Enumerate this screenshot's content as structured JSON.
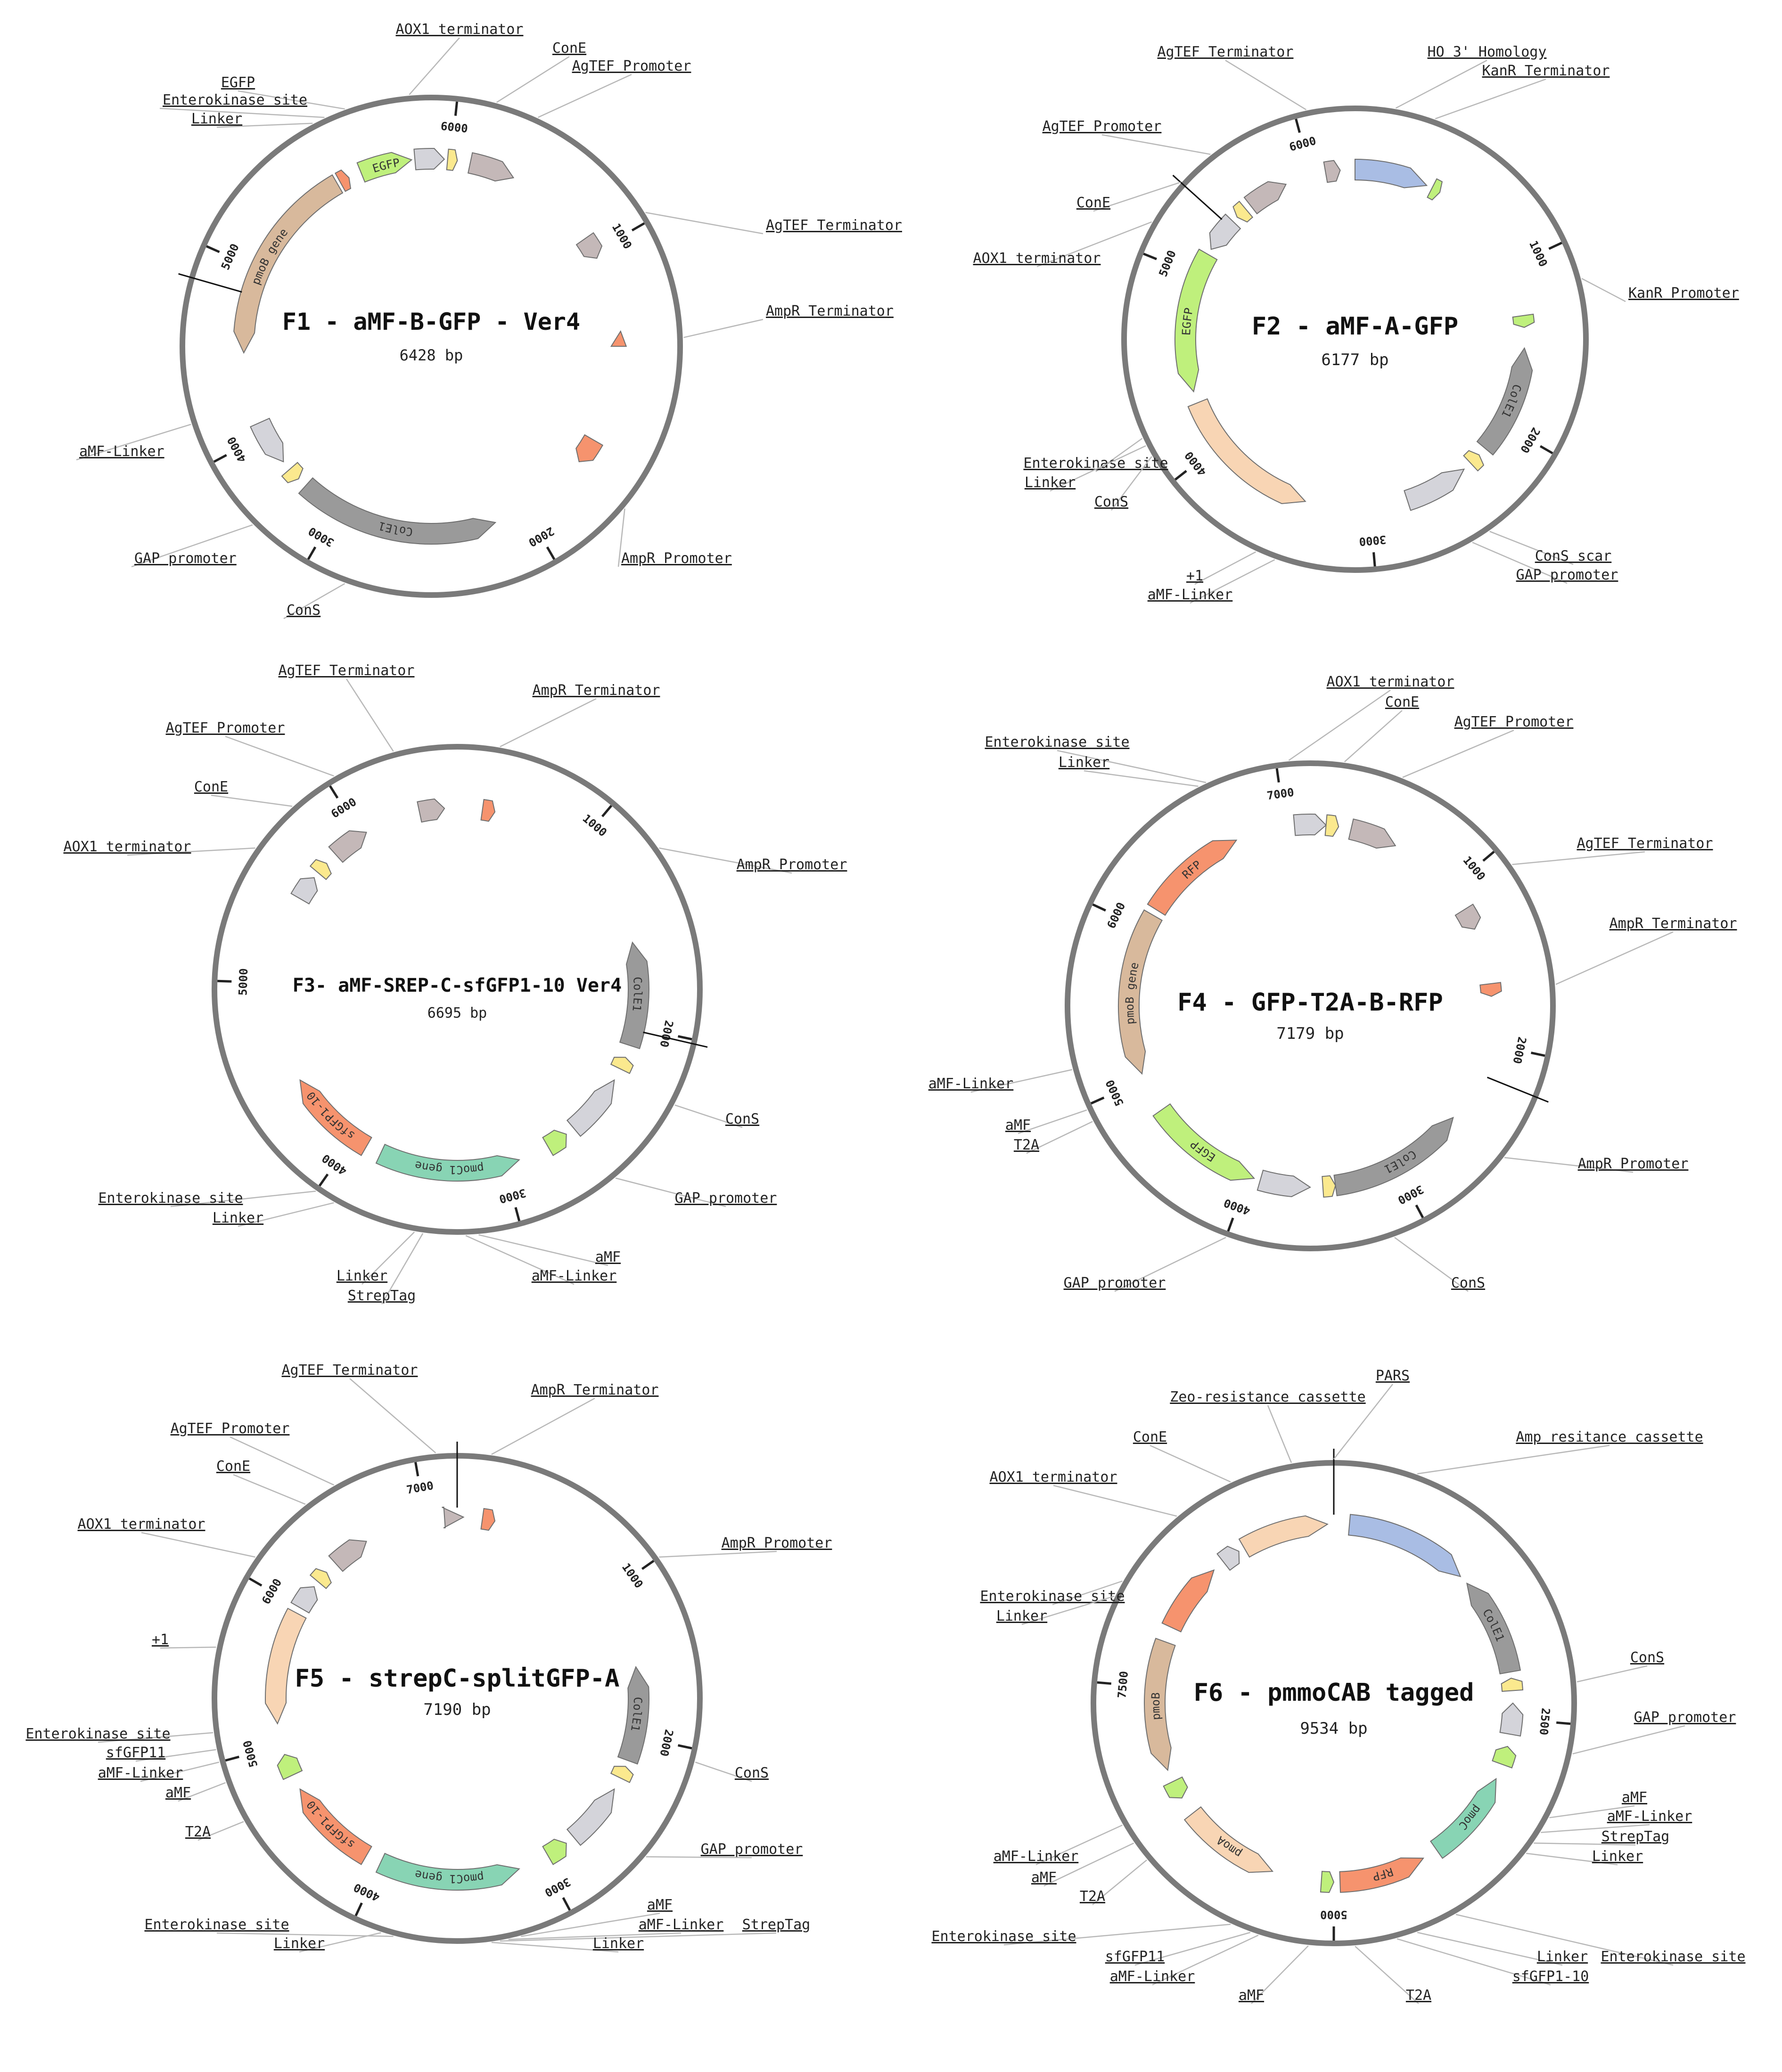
{
  "colors": {
    "backbone": "#7a7a7a",
    "leader": "#b8b8b8",
    "label": "#222222",
    "EGFP": "#bff07c",
    "aMF": "#bff07c",
    "gray_light": "#d4d4da",
    "taupe": "#c4b8b8",
    "yellow": "#fbe98e",
    "orange": "#f6936e",
    "colE1": "#9a9a9a",
    "tan": "#d8b99c",
    "peach": "#f8d5b4",
    "blue": "#a9bde4",
    "teal": "#88d4b4"
  },
  "maps": [
    {
      "id": "F1",
      "title": "F1 - aMF-B-GFP - Ver4",
      "size": "6428 bp",
      "ticks": [
        {
          "pos": 1000,
          "label": "1000"
        },
        {
          "pos": 2000,
          "label": "2000"
        },
        {
          "pos": 3000,
          "label": "3000"
        },
        {
          "pos": 4000,
          "label": "4000"
        },
        {
          "pos": 5000,
          "label": "5000"
        },
        {
          "pos": 6000,
          "label": "6000"
        }
      ],
      "labels": [
        {
          "text": "AOX1 terminator"
        },
        {
          "text": "ConE"
        },
        {
          "text": "AgTEF Promoter"
        },
        {
          "text": "EGFP"
        },
        {
          "text": "Enterokinase site"
        },
        {
          "text": "Linker"
        },
        {
          "text": "AgTEF Terminator"
        },
        {
          "text": "AmpR Terminator"
        },
        {
          "text": "aMF-Linker"
        },
        {
          "text": "GAP promoter"
        },
        {
          "text": "AmpR Promoter"
        },
        {
          "text": "ConS"
        }
      ],
      "features": [
        {
          "label": "EGFP",
          "color": "EGFP"
        },
        {
          "label": "pmoB gene",
          "color": "tan"
        },
        {
          "label": "ColE1",
          "color": "colE1"
        }
      ]
    },
    {
      "id": "F2",
      "title": "F2 - aMF-A-GFP",
      "size": "6177 bp",
      "ticks": [
        {
          "pos": 1000,
          "label": "1000"
        },
        {
          "pos": 2000,
          "label": "2000"
        },
        {
          "pos": 3000,
          "label": "3000"
        },
        {
          "pos": 4000,
          "label": "4000"
        },
        {
          "pos": 5000,
          "label": "5000"
        },
        {
          "pos": 6000,
          "label": "6000"
        }
      ],
      "labels": [
        {
          "text": "AgTEF Terminator"
        },
        {
          "text": "HO 3' Homology"
        },
        {
          "text": "KanR Terminator"
        },
        {
          "text": "AgTEF Promoter"
        },
        {
          "text": "ConE"
        },
        {
          "text": "AOX1 terminator"
        },
        {
          "text": "KanR Promoter"
        },
        {
          "text": "EGFP"
        },
        {
          "text": "Enterokinase site"
        },
        {
          "text": "Linker"
        },
        {
          "text": "ConS"
        },
        {
          "text": "ConS scar"
        },
        {
          "text": "GAP promoter"
        },
        {
          "text": "+1"
        },
        {
          "text": "aMF-Linker"
        }
      ],
      "features": [
        {
          "label": "EGFP",
          "color": "EGFP"
        },
        {
          "label": "ColE1",
          "color": "colE1"
        }
      ]
    },
    {
      "id": "F3",
      "title": "F3- aMF-SREP-C-sfGFP1-10 Ver4",
      "size": "6695 bp",
      "ticks": [
        {
          "pos": 1000,
          "label": "1000"
        },
        {
          "pos": 2000,
          "label": "2000"
        },
        {
          "pos": 3000,
          "label": "3000"
        },
        {
          "pos": 4000,
          "label": "4000"
        },
        {
          "pos": 5000,
          "label": "5000"
        },
        {
          "pos": 6000,
          "label": "6000"
        }
      ],
      "labels": [
        {
          "text": "AgTEF Terminator"
        },
        {
          "text": "AmpR Terminator"
        },
        {
          "text": "AgTEF Promoter"
        },
        {
          "text": "ConE"
        },
        {
          "text": "AmpR Promoter"
        },
        {
          "text": "AOX1 terminator"
        },
        {
          "text": "ConS"
        },
        {
          "text": "Enterokinase site"
        },
        {
          "text": "Linker"
        },
        {
          "text": "GAP promoter"
        },
        {
          "text": "aMF"
        },
        {
          "text": "Linker"
        },
        {
          "text": "aMF-Linker"
        },
        {
          "text": "StrepTag"
        }
      ],
      "features": [
        {
          "label": "ColE1",
          "color": "colE1"
        },
        {
          "label": "sfGFP1-10",
          "color": "orange"
        },
        {
          "label": "pmoC1 gene",
          "color": "teal"
        }
      ]
    },
    {
      "id": "F4",
      "title": "F4 - GFP-T2A-B-RFP",
      "size": "7179 bp",
      "ticks": [
        {
          "pos": 1000,
          "label": "1000"
        },
        {
          "pos": 2000,
          "label": "2000"
        },
        {
          "pos": 3000,
          "label": "3000"
        },
        {
          "pos": 4000,
          "label": "4000"
        },
        {
          "pos": 5000,
          "label": "5000"
        },
        {
          "pos": 6000,
          "label": "6000"
        },
        {
          "pos": 7000,
          "label": "7000"
        }
      ],
      "labels": [
        {
          "text": "AOX1 terminator"
        },
        {
          "text": "ConE"
        },
        {
          "text": "Enterokinase site"
        },
        {
          "text": "AgTEF Promoter"
        },
        {
          "text": "Linker"
        },
        {
          "text": "AgTEF Terminator"
        },
        {
          "text": "AmpR Terminator"
        },
        {
          "text": "aMF-Linker"
        },
        {
          "text": "aMF"
        },
        {
          "text": "T2A"
        },
        {
          "text": "AmpR Promoter"
        },
        {
          "text": "GAP promoter"
        },
        {
          "text": "ConS"
        }
      ],
      "features": [
        {
          "label": "RFP",
          "color": "orange"
        },
        {
          "label": "pmoB gene",
          "color": "tan"
        },
        {
          "label": "EGFP",
          "color": "EGFP"
        },
        {
          "label": "ColE1",
          "color": "colE1"
        }
      ]
    },
    {
      "id": "F5",
      "title": "F5 - strepC-splitGFP-A",
      "size": "7190 bp",
      "ticks": [
        {
          "pos": 1000,
          "label": "1000"
        },
        {
          "pos": 2000,
          "label": "2000"
        },
        {
          "pos": 3000,
          "label": "3000"
        },
        {
          "pos": 4000,
          "label": "4000"
        },
        {
          "pos": 5000,
          "label": "5000"
        },
        {
          "pos": 6000,
          "label": "6000"
        },
        {
          "pos": 7000,
          "label": "7000"
        }
      ],
      "labels": [
        {
          "text": "AgTEF Terminator"
        },
        {
          "text": "AmpR Terminator"
        },
        {
          "text": "AgTEF Promoter"
        },
        {
          "text": "ConE"
        },
        {
          "text": "AmpR Promoter"
        },
        {
          "text": "AOX1 terminator"
        },
        {
          "text": "+1"
        },
        {
          "text": "Enterokinase site"
        },
        {
          "text": "sfGFP11"
        },
        {
          "text": "aMF-Linker"
        },
        {
          "text": "ConS"
        },
        {
          "text": "aMF"
        },
        {
          "text": "T2A"
        },
        {
          "text": "GAP promoter"
        },
        {
          "text": "aMF"
        },
        {
          "text": "aMF-Linker"
        },
        {
          "text": "StrepTag"
        },
        {
          "text": "Enterokinase site"
        },
        {
          "text": "Linker"
        },
        {
          "text": "Linker"
        }
      ],
      "features": [
        {
          "label": "ColE1",
          "color": "colE1"
        },
        {
          "label": "sfGFP1-10",
          "color": "orange"
        },
        {
          "label": "pmoC1 gene",
          "color": "teal"
        }
      ]
    },
    {
      "id": "F6",
      "title": "F6 - pmmoCAB tagged",
      "size": "9534 bp",
      "ticks": [
        {
          "pos": 2500,
          "label": "2500"
        },
        {
          "pos": 5000,
          "label": "5000"
        },
        {
          "pos": 7500,
          "label": "7500"
        }
      ],
      "labels": [
        {
          "text": "PARS"
        },
        {
          "text": "Zeo-resistance cassette"
        },
        {
          "text": "ConE"
        },
        {
          "text": "Amp resitance cassette"
        },
        {
          "text": "AOX1 terminator"
        },
        {
          "text": "Enterokinase site"
        },
        {
          "text": "Linker"
        },
        {
          "text": "ConS"
        },
        {
          "text": "GAP promoter"
        },
        {
          "text": "aMF"
        },
        {
          "text": "aMF-Linker"
        },
        {
          "text": "StrepTag"
        },
        {
          "text": "aMF-Linker"
        },
        {
          "text": "Linker"
        },
        {
          "text": "aMF"
        },
        {
          "text": "T2A"
        },
        {
          "text": "Enterokinase site"
        },
        {
          "text": "sfGFP11"
        },
        {
          "text": "Linker"
        },
        {
          "text": "aMF-Linker"
        },
        {
          "text": "Enterokinase site"
        },
        {
          "text": "sfGFP1-10"
        },
        {
          "text": "aMF"
        },
        {
          "text": "T2A"
        }
      ],
      "features": [
        {
          "label": "ColE1",
          "color": "colE1"
        },
        {
          "label": "pmoC",
          "color": "teal"
        },
        {
          "label": "RFP",
          "color": "orange"
        },
        {
          "label": "pmoB",
          "color": "tan"
        },
        {
          "label": "pmoA",
          "color": "peach"
        }
      ]
    }
  ]
}
